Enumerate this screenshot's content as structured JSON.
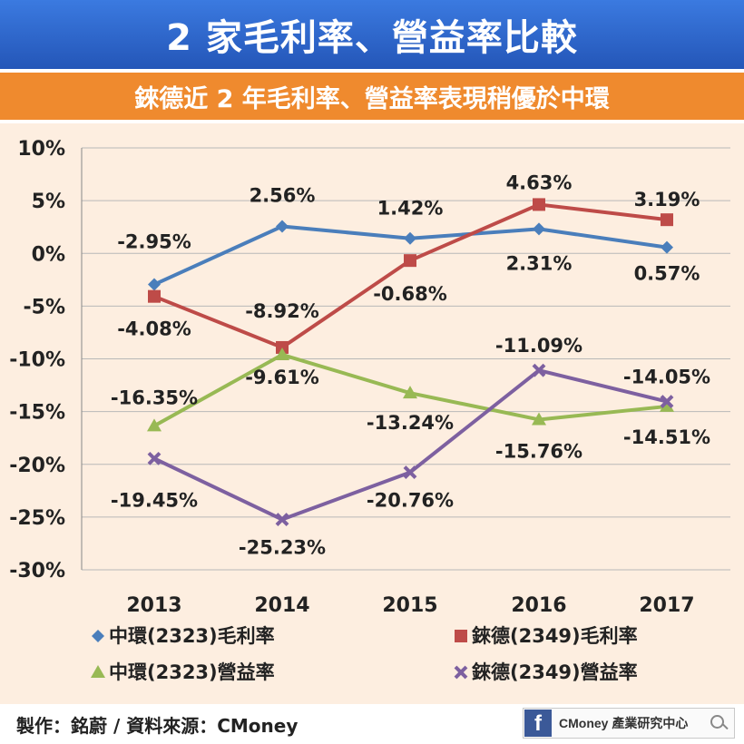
{
  "header": {
    "title": "2 家毛利率、營益率比較",
    "subtitle": "錸德近 2 年毛利率、營益率表現稍優於中環"
  },
  "chart_data": {
    "type": "line",
    "categories": [
      "2013",
      "2014",
      "2015",
      "2016",
      "2017"
    ],
    "ylim": [
      -30,
      10
    ],
    "yticks": [
      10,
      5,
      0,
      -5,
      -10,
      -15,
      -20,
      -25,
      -30
    ],
    "ytick_labels": [
      "10%",
      "5%",
      "0%",
      "-5%",
      "-10%",
      "-15%",
      "-20%",
      "-25%",
      "-30%"
    ],
    "grid": true,
    "legend": "bottom",
    "series": [
      {
        "name": "中環(2323)毛利率",
        "color": "#4a7ebb",
        "marker": "diamond",
        "values": [
          -2.95,
          2.56,
          1.42,
          2.31,
          0.57
        ],
        "labels": [
          "-2.95%",
          "2.56%",
          "1.42%",
          "2.31%",
          "0.57%"
        ]
      },
      {
        "name": "錸德(2349)毛利率",
        "color": "#be4b48",
        "marker": "square",
        "values": [
          -4.08,
          -8.92,
          -0.68,
          4.63,
          3.19
        ],
        "labels": [
          "-4.08%",
          "-8.92%",
          "-0.68%",
          "4.63%",
          "3.19%"
        ]
      },
      {
        "name": "中環(2323)營益率",
        "color": "#98b954",
        "marker": "triangle",
        "values": [
          -16.35,
          -9.61,
          -13.24,
          -15.76,
          -14.51
        ],
        "labels": [
          "-16.35%",
          "-9.61%",
          "-13.24%",
          "-15.76%",
          "-14.51%"
        ]
      },
      {
        "name": "錸德(2349)營益率",
        "color": "#7d60a0",
        "marker": "x",
        "values": [
          -19.45,
          -25.23,
          -20.76,
          -11.09,
          -14.05
        ],
        "labels": [
          "-19.45%",
          "-25.23%",
          "-20.76%",
          "-11.09%",
          "-14.05%"
        ]
      }
    ]
  },
  "footer": {
    "credit": "製作：銘蔚 / 資料來源：CMoney",
    "badge_text": "CMoney 產業研究中心",
    "badge_icon": "facebook-icon"
  }
}
